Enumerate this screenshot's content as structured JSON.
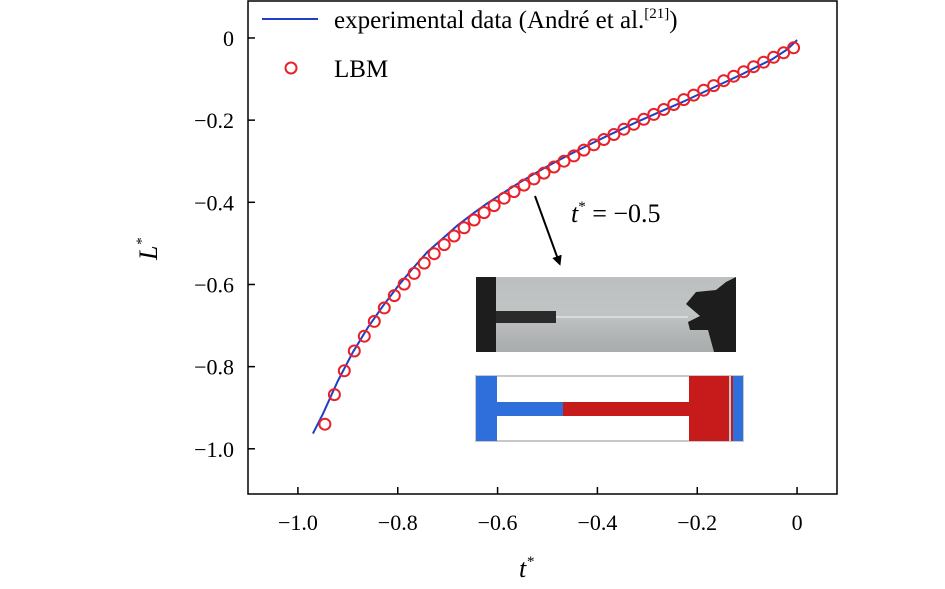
{
  "chart_data": {
    "type": "line",
    "xlabel": "t",
    "xlabel_sup": "*",
    "ylabel": "L",
    "ylabel_sup": "*",
    "xlim": [
      -1.1,
      0.08
    ],
    "ylim": [
      -1.11,
      0.09
    ],
    "x_ticks": [
      -1.0,
      -0.8,
      -0.6,
      -0.4,
      -0.2,
      0
    ],
    "x_tick_labels": [
      "−1.0",
      "−0.8",
      "−0.6",
      "−0.4",
      "−0.2",
      "0"
    ],
    "y_ticks": [
      0,
      -0.2,
      -0.4,
      -0.6,
      -0.8,
      -1.0
    ],
    "y_tick_labels": [
      "0",
      "−0.2",
      "−0.4",
      "−0.6",
      "−0.8",
      "−1.0"
    ],
    "grid": false,
    "legend_position": "top-left",
    "series": [
      {
        "name": "experimental data (André et al.",
        "name_ref": "[21]",
        "name_tail": ")",
        "style": "line",
        "color": "#1f3fc4",
        "x": [
          -0.97,
          -0.95,
          -0.92,
          -0.89,
          -0.86,
          -0.83,
          -0.8,
          -0.77,
          -0.74,
          -0.71,
          -0.68,
          -0.65,
          -0.62,
          -0.59,
          -0.56,
          -0.53,
          -0.5,
          -0.47,
          -0.44,
          -0.41,
          -0.38,
          -0.35,
          -0.32,
          -0.29,
          -0.26,
          -0.23,
          -0.2,
          -0.17,
          -0.14,
          -0.11,
          -0.08,
          -0.05,
          -0.02,
          0
        ],
        "y": [
          -0.963,
          -0.915,
          -0.835,
          -0.765,
          -0.705,
          -0.653,
          -0.605,
          -0.561,
          -0.52,
          -0.488,
          -0.456,
          -0.428,
          -0.402,
          -0.378,
          -0.355,
          -0.333,
          -0.312,
          -0.293,
          -0.274,
          -0.256,
          -0.238,
          -0.221,
          -0.204,
          -0.188,
          -0.172,
          -0.156,
          -0.139,
          -0.122,
          -0.105,
          -0.088,
          -0.07,
          -0.052,
          -0.028,
          -0.005
        ]
      },
      {
        "name": "LBM",
        "style": "markers",
        "marker": "open-circle",
        "color": "#e8222a",
        "x": [
          -0.946,
          -0.927,
          -0.907,
          -0.887,
          -0.867,
          -0.847,
          -0.827,
          -0.807,
          -0.787,
          -0.767,
          -0.747,
          -0.727,
          -0.707,
          -0.687,
          -0.667,
          -0.647,
          -0.627,
          -0.607,
          -0.587,
          -0.567,
          -0.547,
          -0.527,
          -0.507,
          -0.487,
          -0.467,
          -0.447,
          -0.427,
          -0.407,
          -0.387,
          -0.367,
          -0.347,
          -0.327,
          -0.307,
          -0.287,
          -0.267,
          -0.247,
          -0.227,
          -0.207,
          -0.187,
          -0.167,
          -0.147,
          -0.127,
          -0.107,
          -0.087,
          -0.067,
          -0.047,
          -0.027,
          -0.007
        ],
        "y": [
          -0.94,
          -0.868,
          -0.81,
          -0.762,
          -0.726,
          -0.69,
          -0.657,
          -0.627,
          -0.599,
          -0.573,
          -0.548,
          -0.525,
          -0.503,
          -0.482,
          -0.462,
          -0.443,
          -0.425,
          -0.408,
          -0.39,
          -0.374,
          -0.358,
          -0.343,
          -0.329,
          -0.314,
          -0.3,
          -0.287,
          -0.273,
          -0.26,
          -0.247,
          -0.235,
          -0.222,
          -0.21,
          -0.198,
          -0.186,
          -0.174,
          -0.162,
          -0.15,
          -0.139,
          -0.127,
          -0.116,
          -0.104,
          -0.093,
          -0.082,
          -0.07,
          -0.059,
          -0.047,
          -0.036,
          -0.024
        ]
      }
    ],
    "annotation": {
      "text_var": "t",
      "text_sup": "*",
      "text_rest": " = −0.5",
      "points_to_x": -0.5
    },
    "inset": {
      "experiment_image_colors": {
        "background": "#b9bcbd",
        "dark": "#1d1d1d"
      },
      "simulation_colors": {
        "blue": "#2f6fdc",
        "red": "#c71b1b",
        "border": "#c8c8c8"
      }
    }
  }
}
